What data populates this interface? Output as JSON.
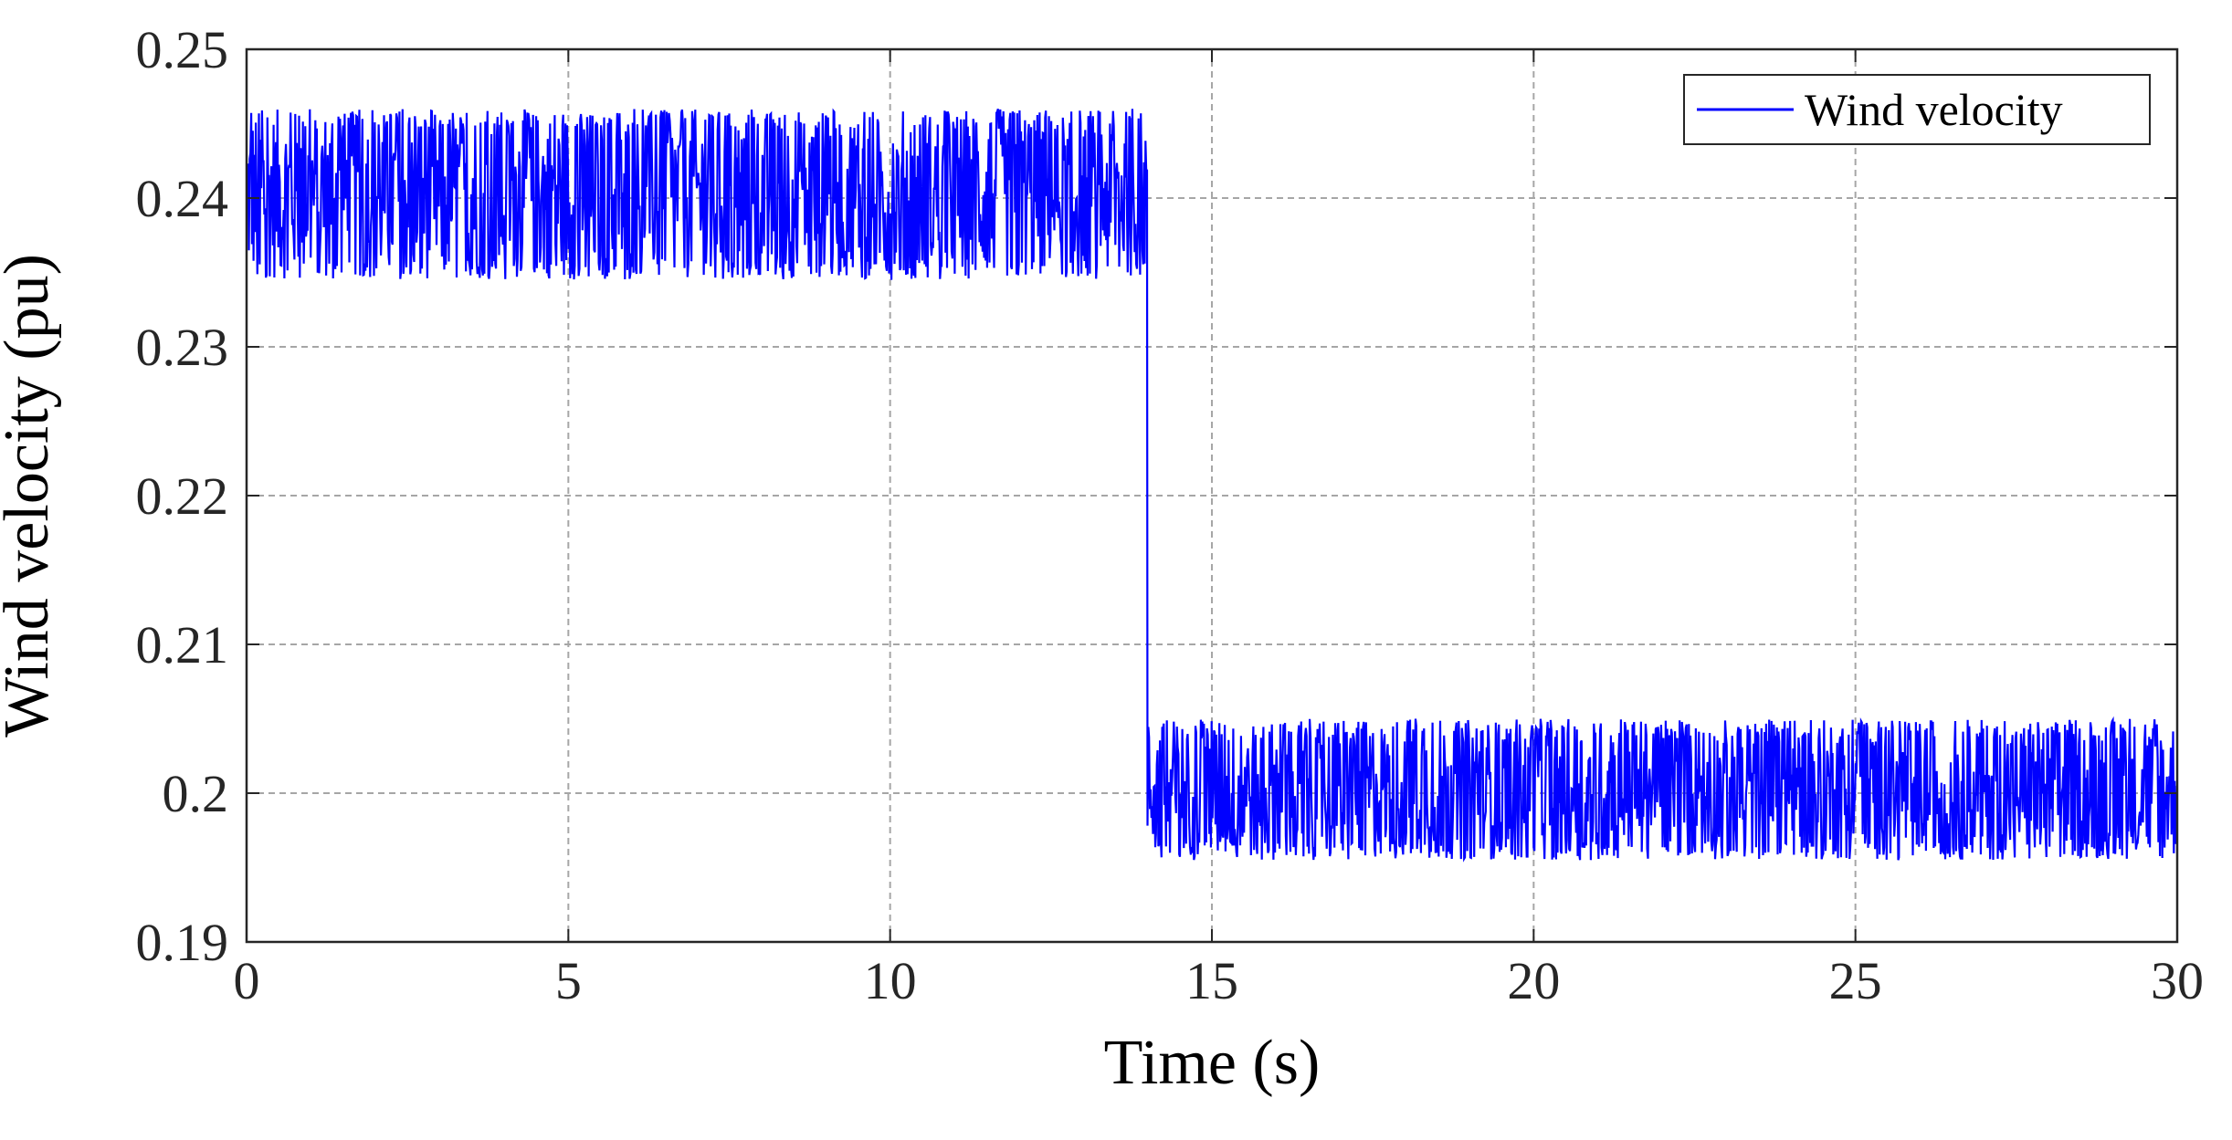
{
  "chart_data": {
    "type": "line",
    "title": "",
    "xlabel": "Time (s)",
    "ylabel": "Wind velocity (pu)",
    "xlim": [
      0,
      30
    ],
    "ylim": [
      0.19,
      0.25
    ],
    "xticks": [
      0,
      5,
      10,
      15,
      20,
      25,
      30
    ],
    "xtick_labels": [
      "0",
      "5",
      "10",
      "15",
      "20",
      "25",
      "30"
    ],
    "yticks": [
      0.19,
      0.2,
      0.21,
      0.22,
      0.23,
      0.24,
      0.25
    ],
    "ytick_labels": [
      "0.19",
      "0.2",
      "0.21",
      "0.22",
      "0.23",
      "0.24",
      "0.25"
    ],
    "grid": true,
    "legend_position": "top-right",
    "series": [
      {
        "name": "Wind velocity",
        "color": "#0000ff",
        "segments": [
          {
            "x_start": 0,
            "x_end": 14,
            "mean": 0.24,
            "min": 0.2345,
            "max": 0.246
          },
          {
            "x_start": 14,
            "x_end": 30,
            "mean": 0.2,
            "min": 0.1955,
            "max": 0.205
          }
        ],
        "step_time": 14
      }
    ]
  }
}
